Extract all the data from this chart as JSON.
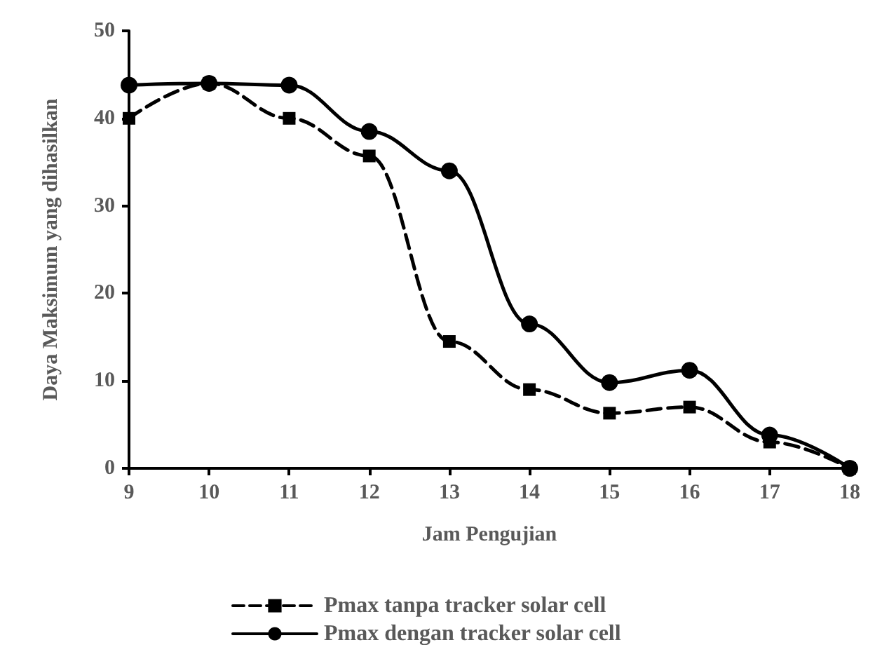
{
  "chart_data": {
    "type": "line",
    "xlabel": "Jam Pengujian",
    "ylabel": "Daya Maksimum yang dihasilkan",
    "x": [
      9,
      10,
      11,
      12,
      13,
      14,
      15,
      16,
      17,
      18
    ],
    "xlim": [
      9,
      18
    ],
    "xticks": [
      9,
      10,
      11,
      12,
      13,
      14,
      15,
      16,
      17,
      18
    ],
    "ylim": [
      0,
      50
    ],
    "yticks": [
      0,
      10,
      20,
      30,
      40,
      50
    ],
    "grid": false,
    "legend": "bottom",
    "series": [
      {
        "name": "Pmax tanpa tracker solar cell",
        "color": "#000000",
        "marker": "square",
        "line_style": "dashed",
        "values": [
          40,
          44,
          40,
          35.7,
          14.5,
          9,
          6.3,
          7,
          3,
          0
        ]
      },
      {
        "name": "Pmax dengan tracker solar cell",
        "color": "#000000",
        "marker": "circle",
        "line_style": "solid",
        "values": [
          43.8,
          44,
          43.8,
          38.5,
          34,
          16.5,
          9.8,
          11.2,
          3.8,
          0
        ]
      }
    ]
  }
}
